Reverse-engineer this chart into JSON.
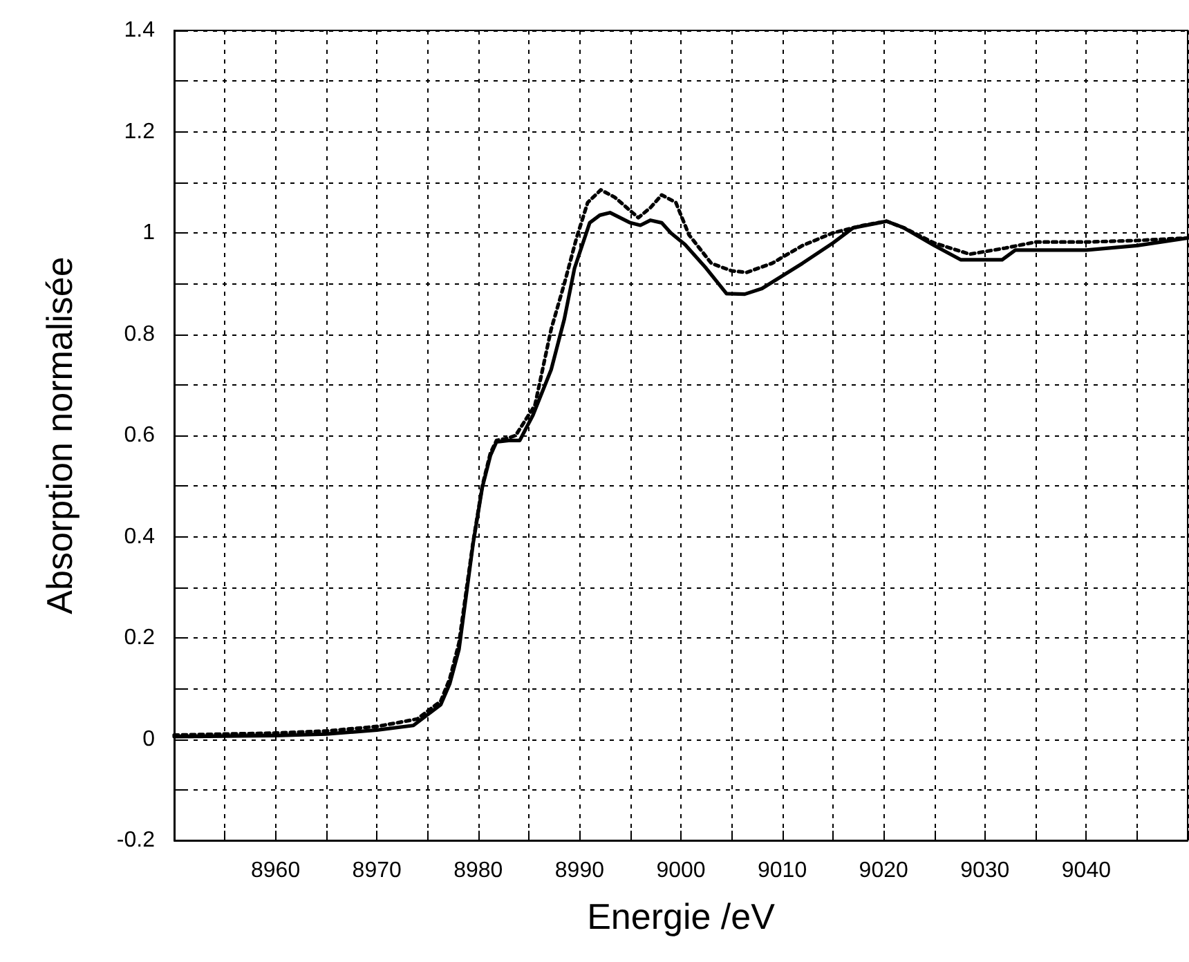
{
  "chart_data": {
    "type": "line",
    "xlabel": "Energie /eV",
    "ylabel": "Absorption normalisée",
    "xlim": [
      8950,
      9050
    ],
    "ylim": [
      -0.2,
      1.4
    ],
    "xticks": [
      {
        "value": 8950,
        "label": null
      },
      {
        "value": 8955,
        "label": null
      },
      8960,
      {
        "value": 8965,
        "label": null
      },
      8970,
      {
        "value": 8975,
        "label": null
      },
      8980,
      {
        "value": 8985,
        "label": null
      },
      8990,
      {
        "value": 8995,
        "label": null
      },
      9000,
      {
        "value": 9005,
        "label": null
      },
      9010,
      {
        "value": 9015,
        "label": null
      },
      9020,
      {
        "value": 9025,
        "label": null
      },
      9030,
      {
        "value": 9035,
        "label": null
      },
      9040,
      {
        "value": 9045,
        "label": null
      },
      {
        "value": 9050,
        "label": null
      }
    ],
    "yticks": [
      -0.2,
      {
        "value": -0.1,
        "label": null
      },
      0,
      {
        "value": 0.1,
        "label": null
      },
      0.2,
      {
        "value": 0.3,
        "label": null
      },
      0.4,
      {
        "value": 0.5,
        "label": null
      },
      0.6,
      {
        "value": 0.7,
        "label": null
      },
      0.8,
      {
        "value": 0.9,
        "label": null
      },
      1,
      {
        "value": 1.1,
        "label": null
      },
      1.2,
      {
        "value": 1.3,
        "label": null
      },
      1.4
    ],
    "grid": true,
    "marker": "none",
    "series": [
      {
        "color": "#000000",
        "line_style": "solid",
        "x": [
          8950,
          8960,
          8965,
          8970,
          8973.6,
          8976.3,
          8977.2,
          8978.1,
          8979.5,
          8980.4,
          8981.2,
          8981.8,
          8983,
          8984.1,
          8985.4,
          8987.2,
          8988.5,
          8989.5,
          8991,
          8992,
          8993,
          8995,
          8996,
          8997,
          8998.1,
          8999,
          9000.4,
          9002.5,
          9004.5,
          9006.3,
          9008,
          9010,
          9012,
          9015,
          9017,
          9020.3,
          9022,
          9025,
          9027.6,
          9031.7,
          9033,
          9036,
          9040,
          9045,
          9050
        ],
        "values": [
          0.005,
          0.007,
          0.01,
          0.018,
          0.027,
          0.068,
          0.11,
          0.177,
          0.387,
          0.497,
          0.56,
          0.587,
          0.59,
          0.59,
          0.64,
          0.73,
          0.83,
          0.93,
          1.02,
          1.035,
          1.04,
          1.02,
          1.015,
          1.025,
          1.02,
          1.0,
          0.977,
          0.93,
          0.88,
          0.879,
          0.89,
          0.915,
          0.94,
          0.98,
          1.01,
          1.023,
          1.01,
          0.975,
          0.947,
          0.947,
          0.966,
          0.966,
          0.966,
          0.975,
          0.99
        ]
      },
      {
        "color": "#000000",
        "line_style": "dotted",
        "x": [
          8950,
          8960,
          8965,
          8970,
          8972.2,
          8974,
          8976.3,
          8977.2,
          8978.1,
          8979.5,
          8980.4,
          8981.2,
          8981.8,
          8983,
          8983.7,
          8985.6,
          8987.2,
          8988.5,
          8989.7,
          8990.8,
          8992.1,
          8993.5,
          8995.8,
          8997,
          8998.1,
          8999.5,
          9000.8,
          9003,
          9005,
          9006.5,
          9009,
          9012,
          9015,
          9018,
          9020.3,
          9022,
          9025,
          9028.5,
          9032,
          9035,
          9040,
          9045,
          9050
        ],
        "values": [
          0.008,
          0.012,
          0.016,
          0.025,
          0.033,
          0.04,
          0.075,
          0.12,
          0.19,
          0.39,
          0.5,
          0.565,
          0.59,
          0.595,
          0.6,
          0.66,
          0.81,
          0.9,
          0.99,
          1.06,
          1.085,
          1.07,
          1.03,
          1.05,
          1.075,
          1.06,
          0.996,
          0.94,
          0.925,
          0.922,
          0.94,
          0.975,
          1.0,
          1.015,
          1.023,
          1.01,
          0.98,
          0.958,
          0.97,
          0.982,
          0.982,
          0.985,
          0.99
        ]
      }
    ]
  }
}
